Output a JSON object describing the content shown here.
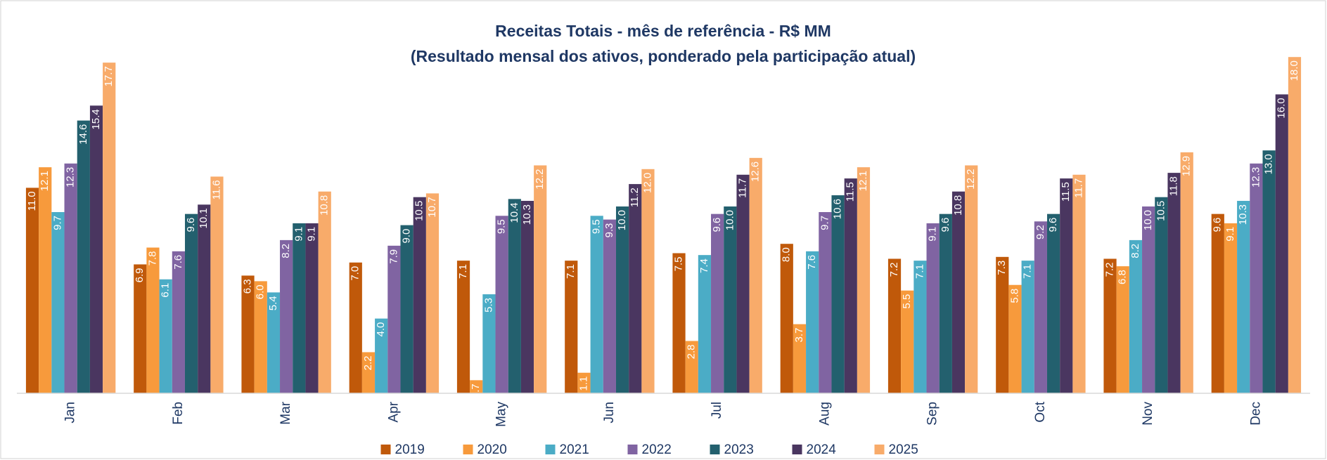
{
  "chart_data": {
    "type": "bar",
    "title": "Receitas Totais - mês de referência - R$ MM",
    "subtitle": "(Resultado mensal dos ativos, ponderado pela participação atual)",
    "categories": [
      "Jan",
      "Feb",
      "Mar",
      "Apr",
      "May",
      "Jun",
      "Jul",
      "Aug",
      "Sep",
      "Oct",
      "Nov",
      "Dec"
    ],
    "ylim": [
      0,
      20
    ],
    "legend": "bottom",
    "series": [
      {
        "name": "2019",
        "color": "#c0590a",
        "values": [
          11.0,
          6.9,
          6.3,
          7.0,
          7.1,
          7.1,
          7.5,
          8.0,
          7.2,
          7.3,
          7.2,
          9.6
        ],
        "value_labels": [
          "11.0",
          "6.9",
          "6.3",
          "7.0",
          "7.1",
          "7.1",
          "7.5",
          "8.0",
          "7.2",
          "7.3",
          "7.2",
          "9.6"
        ]
      },
      {
        "name": "2020",
        "color": "#f79a3c",
        "values": [
          12.1,
          7.8,
          6.0,
          2.2,
          0.7,
          1.1,
          2.8,
          3.7,
          5.5,
          5.8,
          6.8,
          9.1
        ],
        "value_labels": [
          "12.1",
          "7.8",
          "6.0",
          "2.2",
          "0.7",
          "1.1",
          "2.8",
          "3.7",
          "5.5",
          "5.8",
          "6.8",
          "9.1"
        ]
      },
      {
        "name": "2021",
        "color": "#4bacc6",
        "values": [
          9.7,
          6.1,
          5.4,
          4.0,
          5.3,
          9.5,
          7.4,
          7.6,
          7.1,
          7.1,
          8.2,
          10.3
        ],
        "value_labels": [
          "9.7",
          "6.1",
          "5.4",
          "4.0",
          "5.3",
          "9.5",
          "7.4",
          "7.6",
          "7.1",
          "7.1",
          "8.2",
          "10.3"
        ]
      },
      {
        "name": "2022",
        "color": "#8064a2",
        "values": [
          12.3,
          7.6,
          8.2,
          7.9,
          9.5,
          9.3,
          9.6,
          9.7,
          9.1,
          9.2,
          10.0,
          12.3
        ],
        "value_labels": [
          "12.3",
          "7.6",
          "8.2",
          "7.9",
          "9.5",
          "9.3",
          "9.6",
          "9.7",
          "9.1",
          "9.2",
          "10.0",
          "12.3"
        ]
      },
      {
        "name": "2023",
        "color": "#23606e",
        "values": [
          14.6,
          9.6,
          9.1,
          9.0,
          10.4,
          10.0,
          10.0,
          10.6,
          9.6,
          9.6,
          10.5,
          13.0
        ],
        "value_labels": [
          "14.6",
          "9.6",
          "9.1",
          "9.0",
          "10.4",
          "10.0",
          "10.0",
          "10.6",
          "9.6",
          "9.6",
          "10.5",
          "13.0"
        ]
      },
      {
        "name": "2024",
        "color": "#4a3660",
        "values": [
          15.4,
          10.1,
          9.1,
          10.5,
          10.3,
          11.2,
          11.7,
          11.5,
          10.8,
          11.5,
          11.8,
          16.0
        ],
        "value_labels": [
          "15.4",
          "10.1",
          "9.1",
          "10.5",
          "10.3",
          "11.2",
          "11.7",
          "11.5",
          "10.8",
          "11.5",
          "11.8",
          "16.0"
        ]
      },
      {
        "name": "2025",
        "color": "#f8ab6a",
        "values": [
          17.7,
          11.6,
          10.8,
          10.7,
          12.2,
          12.0,
          12.6,
          12.1,
          12.2,
          11.7,
          12.9,
          18.0
        ],
        "value_labels": [
          "17.7",
          "11.6",
          "10.8",
          "10.7",
          "12.2",
          "12.0",
          "12.6",
          "12.1",
          "12.2",
          "11.7",
          "12.9",
          "18.0"
        ]
      }
    ]
  }
}
